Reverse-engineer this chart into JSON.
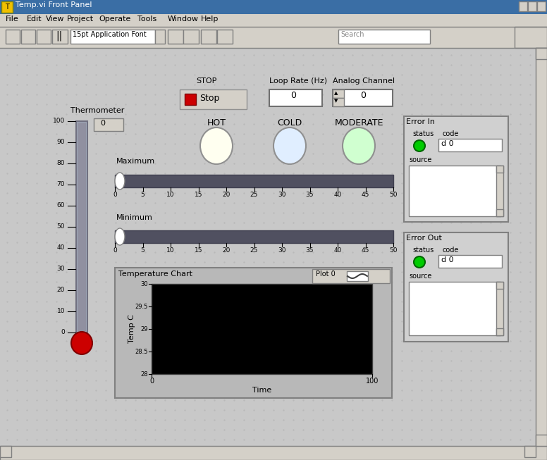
{
  "title": "Temp.vi Front Panel",
  "bg_color": "#c0c0c0",
  "grid_color": "#b8b8b8",
  "panel_bg": "#c8c8c8",
  "dark_bg": "#000000",
  "stop_label": "STOP",
  "stop_btn_label": "Stop",
  "loop_rate_label": "Loop Rate (Hz)",
  "analog_channel_label": "Analog Channel",
  "hot_label": "HOT",
  "cold_label": "COLD",
  "moderate_label": "MODERATE",
  "thermometer_label": "Thermometer",
  "maximum_label": "Maximum",
  "minimum_label": "Minimum",
  "temp_chart_label": "Temperature Chart",
  "plot0_label": "Plot 0",
  "time_label": "Time",
  "temp_c_label": "Temp C",
  "error_in_label": "Error In",
  "error_out_label": "Error Out",
  "status_label": "status",
  "code_label": "code",
  "source_label": "source",
  "menu_items": [
    "File",
    "Edit",
    "View",
    "Project",
    "Operate",
    "Tools",
    "Window",
    "Help"
  ],
  "therm_ticks": [
    0,
    10,
    20,
    30,
    40,
    50,
    60,
    70,
    80,
    90,
    100
  ],
  "slider_ticks": [
    0,
    5,
    10,
    15,
    20,
    25,
    30,
    35,
    40,
    45,
    50
  ],
  "chart_yticks": [
    28,
    28.5,
    29,
    29.5,
    30
  ],
  "chart_xticks": [
    0,
    100
  ],
  "hot_color": "#fffff0",
  "cold_color": "#e0eeff",
  "moderate_color": "#d0ffd0",
  "green_led": "#00cc00",
  "stop_red": "#cc0000",
  "therm_body": "#a0a8b8",
  "therm_bulb": "#cc0000",
  "slider_track": "#505060",
  "window_bar": "#3a6ea5"
}
